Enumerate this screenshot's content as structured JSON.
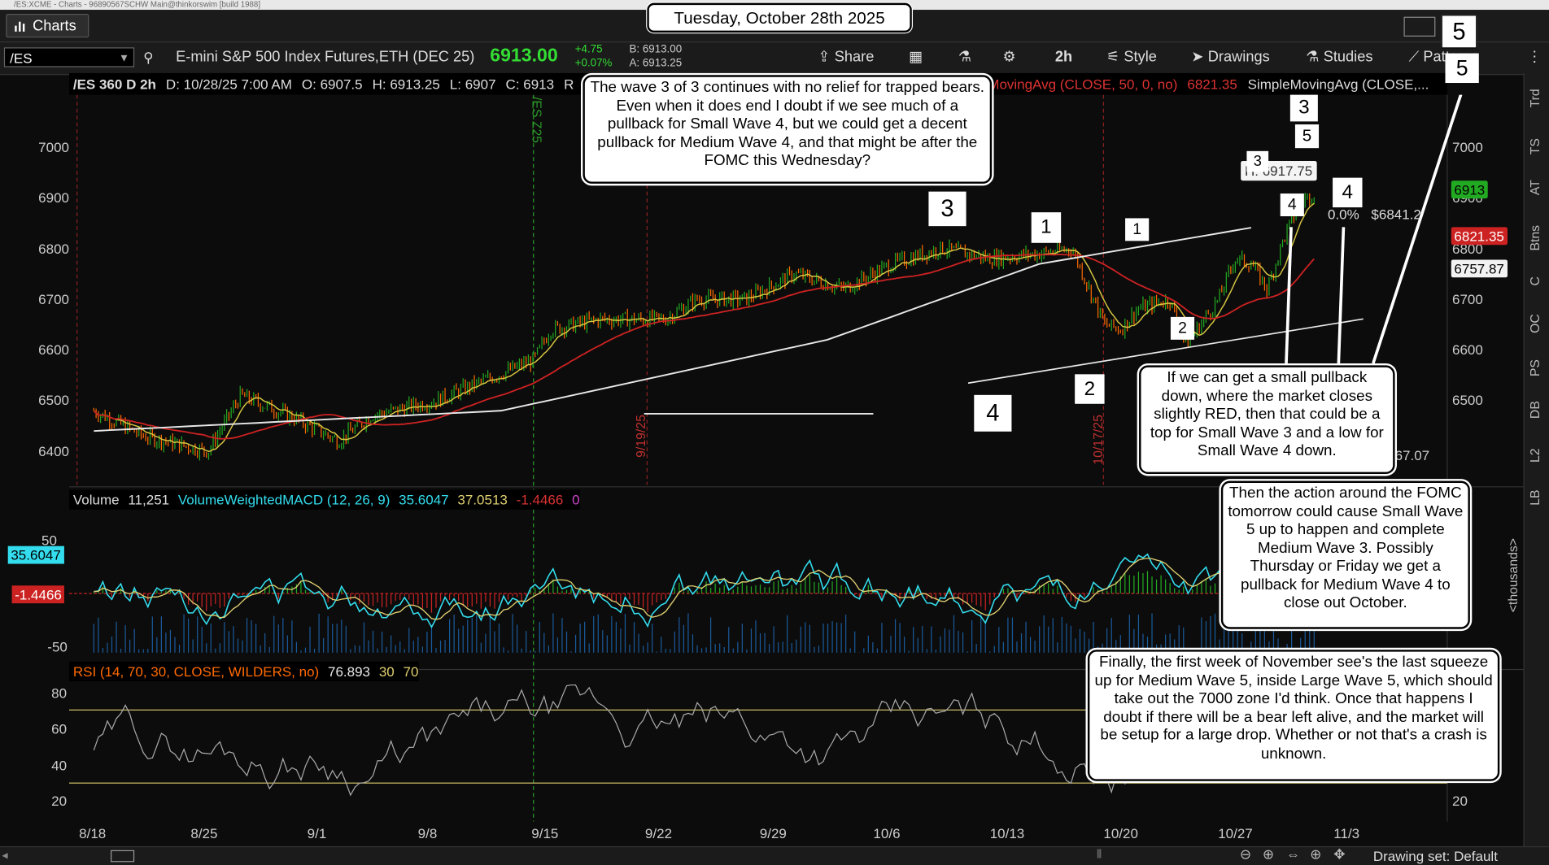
{
  "window": {
    "title_text": "/ES:XCME - Charts - 96890567SCHW Main@thinkorswim [build 1988]"
  },
  "tab": {
    "label": "Charts"
  },
  "date_banner": "Tuesday, October 28th 2025",
  "toolbar": {
    "symbol": "/ES",
    "description": "E-mini S&P 500 Index Futures,ETH (DEC 25)",
    "last_price": "6913.00",
    "net_change": "+4.75",
    "pct_change": "+0.07%",
    "bid": "B: 6913.00",
    "ask": "A: 6913.25",
    "share_label": "Share",
    "timeframe_label": "2h",
    "style_label": "Style",
    "drawings_label": "Drawings",
    "studies_label": "Studies",
    "patterns_label": "Patterns"
  },
  "chart_header": {
    "chart_id": "/ES 360 D 2h",
    "date": "D: 10/28/25 7:00 AM",
    "open": "O: 6907.5",
    "high": "H: 6913.25",
    "low": "L: 6907",
    "close": "C: 6913",
    "r_stub": "R",
    "sma50": "MovingAvg (CLOSE, 50, 0, no)",
    "sma50_value": "6821.35",
    "sma200": "SimpleMovingAvg (CLOSE,..."
  },
  "right_tabs": [
    "Trd",
    "TS",
    "AT",
    "Btns",
    "C",
    "OC",
    "PS",
    "DB",
    "L2",
    "LB"
  ],
  "price_axis": {
    "ticks": [
      "7000",
      "6900",
      "6800",
      "6700",
      "6600",
      "6500",
      "6400"
    ],
    "last_label": "6913",
    "sma50_label": "6821.35",
    "sma200_label": "6757.87",
    "fib_right_label": "67.07"
  },
  "date_axis": [
    "8/18",
    "8/25",
    "9/1",
    "9/8",
    "9/15",
    "9/22",
    "9/29",
    "10/6",
    "10/13",
    "10/20",
    "10/27",
    "11/3"
  ],
  "vertical_markers": {
    "m1": "/ES Z25",
    "m2": "9/19/25",
    "m3": "10/17/25"
  },
  "price_label_top": "H: 6917.75",
  "fib": {
    "pct": "0.0%",
    "value": "$6841.2"
  },
  "macd": {
    "header_volume": "Volume",
    "volume_value": "11,251",
    "study": "VolumeWeightedMACD (12, 26, 9)",
    "v1": "35.6047",
    "v2": "37.0513",
    "v3": "-1.4466",
    "v4": "0",
    "ticks": [
      "50",
      "-50"
    ],
    "label_value": "35.6047",
    "label_diff": "-1.4466",
    "thousands": "<thousands>"
  },
  "rsi": {
    "study": "RSI (14, 70, 30, CLOSE, WILDERS, no)",
    "value": "76.893",
    "os": "30",
    "ob": "70",
    "ticks": [
      "80",
      "60",
      "40",
      "20"
    ],
    "right_tick": "20"
  },
  "annotations": {
    "callout_top": "The wave 3 of 3 continues with no relief for trapped bears.  Even when it does end I doubt if we see much of a pullback for Small Wave 4, but we could get a decent pullback for Medium Wave 4, and that might be after the FOMC this Wednesday?",
    "callout_mid": "If we can get a small pullback down, where the market closes slightly RED, then that could be a top for Small Wave 3 and a low for Small Wave 4 down.",
    "callout_fomc": "Then the action around the FOMC tomorrow could cause Small Wave 5 up to happen and complete Medium Wave 3. Possibly Thursday or Friday we get a pullback for Medium Wave 4 to close out October.",
    "callout_bottom": "Finally, the first week of November see's the last squeeze up for Medium Wave 5, inside Large Wave 5, which should take out the 7000 zone I'd think. Once that happens I doubt if there will be a bear left alive, and the market will be setup for a large drop. Whether or not that's a crash is unknown.",
    "wave_labels": {
      "w3_big": "3",
      "w4_big": "4",
      "w1_mid": "1",
      "w2_big": "2",
      "w1_small": "1",
      "w2_small": "2",
      "w3_small": "3",
      "w4_small": "4",
      "w3_right": "3",
      "w5_right": "5",
      "w4_right": "4",
      "w5_top": "5",
      "w5_corner": "5"
    }
  },
  "bottom": {
    "drawing_set": "Drawing set: Default"
  },
  "colors": {
    "sma50": "#cc2222",
    "sma200": "#e8e8e8",
    "ema_short": "#d8c840",
    "bull": "#22aa22",
    "bear": "#ff6a00",
    "macd": "#33ddee",
    "avg": "#e0d070"
  }
}
